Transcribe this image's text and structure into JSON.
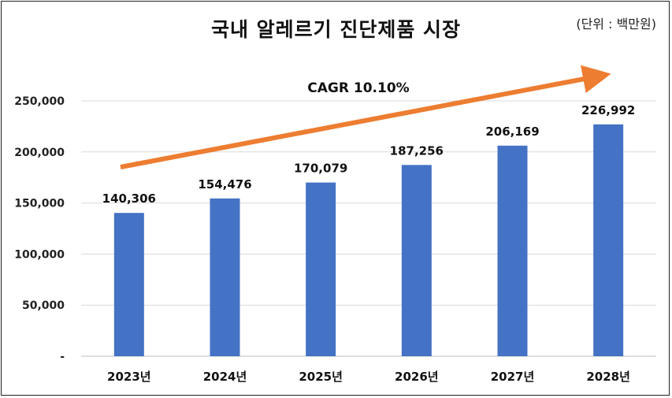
{
  "chart_data": {
    "type": "bar",
    "title": "국내 알레르기 진단제품 시장",
    "unit_note": "(단위 : 백만원)",
    "categories": [
      "2023년",
      "2024년",
      "2025년",
      "2026년",
      "2027년",
      "2028년"
    ],
    "values": [
      140306,
      154476,
      170079,
      187256,
      206169,
      226992
    ],
    "value_labels": [
      "140,306",
      "154,476",
      "170,079",
      "187,256",
      "206,169",
      "226,992"
    ],
    "ylim": [
      0,
      250000
    ],
    "yticks": [
      0,
      50000,
      100000,
      150000,
      200000,
      250000
    ],
    "ytick_labels": [
      "-",
      "50,000",
      "100,000",
      "150,000",
      "200,000",
      "250,000"
    ],
    "annotation": "CAGR 10.10%",
    "grid": true,
    "colors": {
      "bar": "#4472C4",
      "arrow": "#ED7D31",
      "grid": "#D9D9D9"
    }
  }
}
